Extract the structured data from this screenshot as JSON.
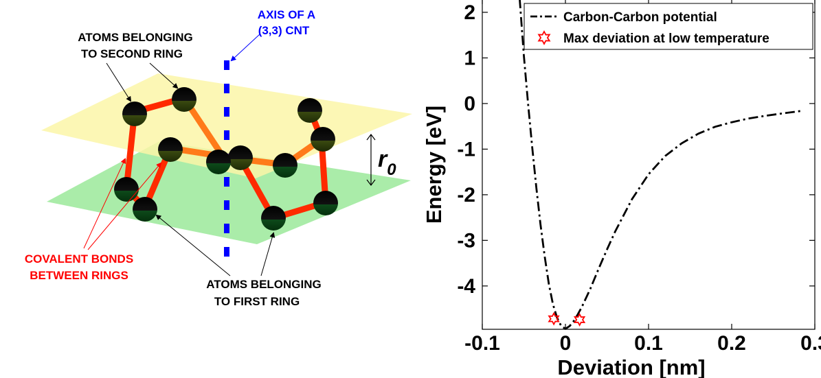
{
  "diagram": {
    "label_axis_line1": "AXIS OF A",
    "label_axis_line2": "(3,3) CNT",
    "label_second_line1": "ATOMS BELONGING",
    "label_second_line2": "TO SECOND RING",
    "label_bonds_line1": "COVALENT BONDS",
    "label_bonds_line2": "BETWEEN RINGS",
    "label_first_line1": "ATOMS BELONGING",
    "label_first_line2": "TO FIRST RING",
    "label_r0": "r",
    "label_r0_sub": "0",
    "colors": {
      "axis_blue": "#0000ff",
      "bond_red": "#ff1a00",
      "bond_orange": "#ff7a1a",
      "top_plane": "#fbf6a8",
      "bottom_plane": "#8fe88a",
      "atom": "#000000",
      "label_red": "#ff0000"
    }
  },
  "chart_data": {
    "type": "line",
    "xlabel": "Deviation [nm]",
    "ylabel": "Energy [eV]",
    "xlim": [
      -0.1,
      0.3
    ],
    "ylim": [
      -4.95,
      2.3
    ],
    "xticks": [
      -0.1,
      0,
      0.1,
      0.2,
      0.3
    ],
    "xtick_labels": [
      "-0.1",
      "0",
      "0.1",
      "0.2",
      "0.3"
    ],
    "yticks": [
      -4,
      -3,
      -2,
      -1,
      0,
      1,
      2
    ],
    "ytick_labels": [
      "-4",
      "-3",
      "-2",
      "-1",
      "0",
      "1",
      "2"
    ],
    "legend_position": "top-right",
    "grid": false,
    "series": [
      {
        "name": "Carbon-Carbon potential",
        "style": "dash-dot",
        "color": "#000000",
        "x": [
          -0.055,
          -0.05,
          -0.045,
          -0.04,
          -0.035,
          -0.03,
          -0.025,
          -0.02,
          -0.015,
          -0.01,
          -0.005,
          0.0,
          0.005,
          0.01,
          0.015,
          0.02,
          0.03,
          0.04,
          0.05,
          0.06,
          0.08,
          0.1,
          0.12,
          0.14,
          0.16,
          0.18,
          0.2,
          0.22,
          0.24,
          0.26,
          0.285
        ],
        "y": [
          2.35,
          1.05,
          0.0,
          -0.95,
          -1.85,
          -2.65,
          -3.35,
          -3.95,
          -4.4,
          -4.7,
          -4.88,
          -4.94,
          -4.88,
          -4.77,
          -4.62,
          -4.45,
          -4.06,
          -3.62,
          -3.2,
          -2.8,
          -2.1,
          -1.55,
          -1.15,
          -0.87,
          -0.66,
          -0.51,
          -0.41,
          -0.33,
          -0.27,
          -0.22,
          -0.16
        ]
      },
      {
        "name": "Max deviation at low temperature",
        "style": "hexagram-markers",
        "color": "#ff0000",
        "x": [
          -0.014,
          0.017
        ],
        "y": [
          -4.72,
          -4.74
        ]
      }
    ]
  }
}
